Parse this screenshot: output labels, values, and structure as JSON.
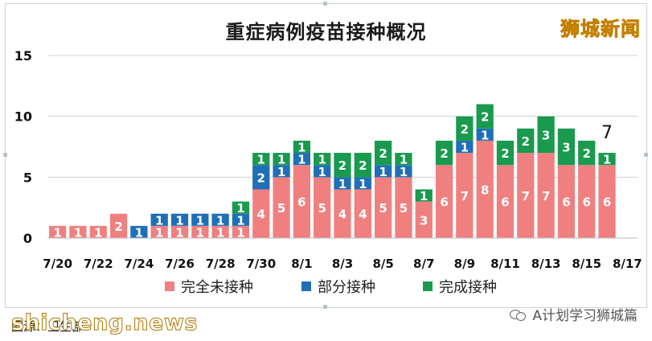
{
  "header": {
    "title": "重症病例疫苗接种概况",
    "watermark": "狮城新闻"
  },
  "footer": {
    "source": "图源：卫生部",
    "watermark": "shicheng.news",
    "account": "A计划学习狮城篇"
  },
  "colors": {
    "unvaccinated": "#f08080",
    "partial": "#1f6fb6",
    "full": "#1a9a4e",
    "grid": "#d0d0d0",
    "label": "#ffffff"
  },
  "chart_data": {
    "type": "bar",
    "stacked": true,
    "title": "重症病例疫苗接种概况",
    "xlabel": "",
    "ylabel": "",
    "ylim": [
      0,
      15
    ],
    "yticks": [
      0,
      5,
      10,
      15
    ],
    "grid": true,
    "legend_position": "bottom",
    "x_tick_labels": [
      "7/20",
      "7/22",
      "7/24",
      "7/26",
      "7/28",
      "7/30",
      "8/1",
      "8/3",
      "8/5",
      "8/7",
      "8/9",
      "8/11",
      "8/13",
      "8/15",
      "8/17"
    ],
    "categories": [
      "7/20",
      "7/21",
      "7/22",
      "7/23",
      "7/24",
      "7/25",
      "7/26",
      "7/27",
      "7/28",
      "7/29",
      "7/30",
      "7/31",
      "8/1",
      "8/2",
      "8/3",
      "8/4",
      "8/5",
      "8/6",
      "8/7",
      "8/8",
      "8/9",
      "8/10",
      "8/11",
      "8/12",
      "8/13",
      "8/14",
      "8/15",
      "8/16",
      "8/17"
    ],
    "series": [
      {
        "name": "完全未接种",
        "values": [
          1,
          1,
          1,
          2,
          0,
          1,
          1,
          1,
          1,
          1,
          4,
          5,
          6,
          5,
          4,
          4,
          5,
          5,
          3,
          6,
          7,
          8,
          6,
          7,
          7,
          6,
          6,
          6,
          0
        ]
      },
      {
        "name": "部分接种",
        "values": [
          0,
          0,
          0,
          0,
          1,
          1,
          1,
          1,
          1,
          1,
          2,
          1,
          1,
          1,
          1,
          1,
          1,
          1,
          0,
          0,
          1,
          1,
          0,
          0,
          0,
          0,
          0,
          0,
          0
        ]
      },
      {
        "name": "完成接种",
        "values": [
          0,
          0,
          0,
          0,
          0,
          0,
          0,
          0,
          0,
          1,
          1,
          1,
          1,
          1,
          2,
          2,
          2,
          1,
          1,
          2,
          2,
          2,
          2,
          2,
          3,
          3,
          2,
          1,
          0
        ]
      }
    ],
    "annotations": [
      {
        "category": "8/16",
        "text": "7"
      }
    ]
  }
}
